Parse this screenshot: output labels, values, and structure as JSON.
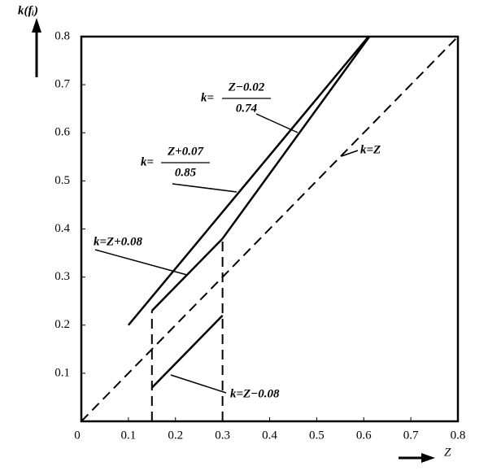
{
  "chart_data": {
    "type": "line",
    "x_label": "Z",
    "y_label": "k(fᵢ)",
    "xlim": [
      0,
      0.8
    ],
    "ylim": [
      0,
      0.8
    ],
    "xticks": [
      0,
      0.1,
      0.2,
      0.3,
      0.4,
      0.5,
      0.6,
      0.7,
      0.8
    ],
    "yticks": [
      0.1,
      0.2,
      0.3,
      0.4,
      0.5,
      0.6,
      0.7,
      0.8
    ],
    "series": [
      {
        "color": "#000000",
        "dashed": true,
        "x": [
          0,
          0.8
        ],
        "values": [
          0,
          0.8
        ]
      },
      {
        "color": "#000000",
        "dashed": false,
        "x": [
          0.1,
          0.61
        ],
        "values": [
          0.2,
          0.8
        ]
      },
      {
        "color": "#000000",
        "dashed": false,
        "x": [
          0.3,
          0.612
        ],
        "values": [
          0.38,
          0.8
        ]
      },
      {
        "color": "#000000",
        "dashed": false,
        "x": [
          0.15,
          0.3
        ],
        "values": [
          0.23,
          0.38
        ]
      },
      {
        "color": "#000000",
        "dashed": false,
        "x": [
          0.15,
          0.3
        ],
        "values": [
          0.07,
          0.22
        ]
      },
      {
        "color": "#000000",
        "dashed": true,
        "x": [
          0.15,
          0.15
        ],
        "values": [
          0,
          0.23
        ]
      },
      {
        "color": "#000000",
        "dashed": true,
        "x": [
          0.3,
          0.3
        ],
        "values": [
          0,
          0.38
        ]
      }
    ],
    "annotations": [
      {
        "text": "k=Z−0.08"
      },
      {
        "text": "k=Z+0.08"
      },
      {
        "prefix": "k=",
        "numerator": "Z+0.07",
        "denominator": "0.85"
      },
      {
        "prefix": "k=",
        "numerator": "Z−0.02",
        "denominator": "0.74"
      },
      {
        "text": "k=Z"
      }
    ]
  }
}
